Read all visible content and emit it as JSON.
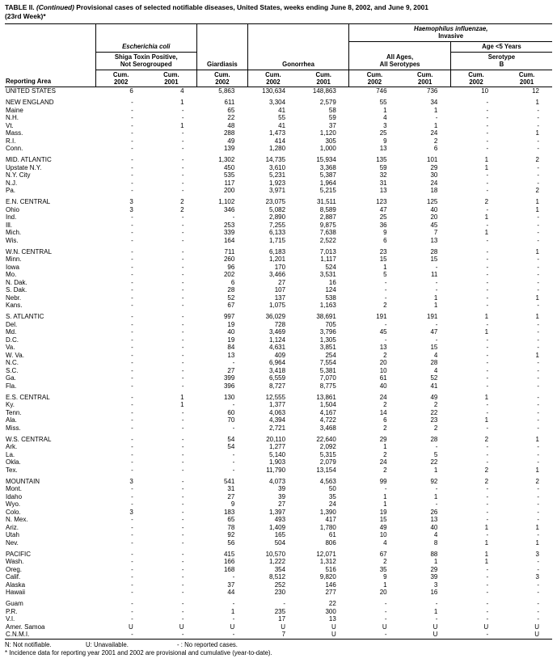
{
  "title": {
    "label": "TABLE II.",
    "continued": "(Continued)",
    "text": "Provisional cases of selected notifiable diseases, United States, weeks ending June 8, 2002, and June 9, 2001",
    "week": "(23rd Week)*"
  },
  "header": {
    "reporting_area": "Reporting Area",
    "ecoli": {
      "title": "Escherichia coli",
      "sub1": "Shiga Toxin Positive,",
      "sub2": "Not Serogrouped"
    },
    "giardiasis": "Giardiasis",
    "gonorrhea": "Gonorrhea",
    "hinf": {
      "title1": "Haemophilus influenzae,",
      "title2": "Invasive",
      "age5": "Age <5 Years",
      "all_ages1": "All Ages,",
      "all_ages2": "All Serotypes",
      "serotype1": "Serotype",
      "serotype2": "B"
    },
    "cum_label": "Cum.",
    "years": [
      "2002",
      "2001",
      "2002",
      "2002",
      "2001",
      "2002",
      "2001",
      "2002",
      "2001"
    ]
  },
  "table": {
    "groups": [
      {
        "rows": [
          {
            "area": "UNITED STATES",
            "values": [
              "6",
              "4",
              "5,863",
              "130,634",
              "148,863",
              "746",
              "736",
              "10",
              "12"
            ]
          }
        ]
      },
      {
        "rows": [
          {
            "area": "NEW ENGLAND",
            "values": [
              "-",
              "1",
              "611",
              "3,304",
              "2,579",
              "55",
              "34",
              "-",
              "1"
            ]
          },
          {
            "area": "Maine",
            "values": [
              "-",
              "-",
              "65",
              "41",
              "58",
              "1",
              "1",
              "-",
              "-"
            ]
          },
          {
            "area": "N.H.",
            "values": [
              "-",
              "-",
              "22",
              "55",
              "59",
              "4",
              "-",
              "-",
              "-"
            ]
          },
          {
            "area": "Vt.",
            "values": [
              "-",
              "1",
              "48",
              "41",
              "37",
              "3",
              "1",
              "-",
              "-"
            ]
          },
          {
            "area": "Mass.",
            "values": [
              "-",
              "-",
              "288",
              "1,473",
              "1,120",
              "25",
              "24",
              "-",
              "1"
            ]
          },
          {
            "area": "R.I.",
            "values": [
              "-",
              "-",
              "49",
              "414",
              "305",
              "9",
              "2",
              "-",
              "-"
            ]
          },
          {
            "area": "Conn.",
            "values": [
              "-",
              "-",
              "139",
              "1,280",
              "1,000",
              "13",
              "6",
              "-",
              "-"
            ]
          }
        ]
      },
      {
        "rows": [
          {
            "area": "MID. ATLANTIC",
            "values": [
              "-",
              "-",
              "1,302",
              "14,735",
              "15,934",
              "135",
              "101",
              "1",
              "2"
            ]
          },
          {
            "area": "Upstate N.Y.",
            "values": [
              "-",
              "-",
              "450",
              "3,610",
              "3,368",
              "59",
              "29",
              "1",
              "-"
            ]
          },
          {
            "area": "N.Y. City",
            "values": [
              "-",
              "-",
              "535",
              "5,231",
              "5,387",
              "32",
              "30",
              "-",
              "-"
            ]
          },
          {
            "area": "N.J.",
            "values": [
              "-",
              "-",
              "117",
              "1,923",
              "1,964",
              "31",
              "24",
              "-",
              "-"
            ]
          },
          {
            "area": "Pa.",
            "values": [
              "-",
              "-",
              "200",
              "3,971",
              "5,215",
              "13",
              "18",
              "-",
              "2"
            ]
          }
        ]
      },
      {
        "rows": [
          {
            "area": "E.N. CENTRAL",
            "values": [
              "3",
              "2",
              "1,102",
              "23,075",
              "31,511",
              "123",
              "125",
              "2",
              "1"
            ]
          },
          {
            "area": "Ohio",
            "values": [
              "3",
              "2",
              "346",
              "5,082",
              "8,589",
              "47",
              "40",
              "-",
              "1"
            ]
          },
          {
            "area": "Ind.",
            "values": [
              "-",
              "-",
              "-",
              "2,890",
              "2,887",
              "25",
              "20",
              "1",
              "-"
            ]
          },
          {
            "area": "Ill.",
            "values": [
              "-",
              "-",
              "253",
              "7,255",
              "9,875",
              "36",
              "45",
              "-",
              "-"
            ]
          },
          {
            "area": "Mich.",
            "values": [
              "-",
              "-",
              "339",
              "6,133",
              "7,638",
              "9",
              "7",
              "1",
              "-"
            ]
          },
          {
            "area": "Wis.",
            "values": [
              "-",
              "-",
              "164",
              "1,715",
              "2,522",
              "6",
              "13",
              "-",
              "-"
            ]
          }
        ]
      },
      {
        "rows": [
          {
            "area": "W.N. CENTRAL",
            "values": [
              "-",
              "-",
              "711",
              "6,183",
              "7,013",
              "23",
              "28",
              "-",
              "1"
            ]
          },
          {
            "area": "Minn.",
            "values": [
              "-",
              "-",
              "260",
              "1,201",
              "1,117",
              "15",
              "15",
              "-",
              "-"
            ]
          },
          {
            "area": "Iowa",
            "values": [
              "-",
              "-",
              "96",
              "170",
              "524",
              "1",
              "-",
              "-",
              "-"
            ]
          },
          {
            "area": "Mo.",
            "values": [
              "-",
              "-",
              "202",
              "3,466",
              "3,531",
              "5",
              "11",
              "-",
              "-"
            ]
          },
          {
            "area": "N. Dak.",
            "values": [
              "-",
              "-",
              "6",
              "27",
              "16",
              "-",
              "-",
              "-",
              "-"
            ]
          },
          {
            "area": "S. Dak.",
            "values": [
              "-",
              "-",
              "28",
              "107",
              "124",
              "-",
              "-",
              "-",
              "-"
            ]
          },
          {
            "area": "Nebr.",
            "values": [
              "-",
              "-",
              "52",
              "137",
              "538",
              "-",
              "1",
              "-",
              "1"
            ]
          },
          {
            "area": "Kans.",
            "values": [
              "-",
              "-",
              "67",
              "1,075",
              "1,163",
              "2",
              "1",
              "-",
              "-"
            ]
          }
        ]
      },
      {
        "rows": [
          {
            "area": "S. ATLANTIC",
            "values": [
              "-",
              "-",
              "997",
              "36,029",
              "38,691",
              "191",
              "191",
              "1",
              "1"
            ]
          },
          {
            "area": "Del.",
            "values": [
              "-",
              "-",
              "19",
              "728",
              "705",
              "-",
              "-",
              "-",
              "-"
            ]
          },
          {
            "area": "Md.",
            "values": [
              "-",
              "-",
              "40",
              "3,469",
              "3,796",
              "45",
              "47",
              "1",
              "-"
            ]
          },
          {
            "area": "D.C.",
            "values": [
              "-",
              "-",
              "19",
              "1,124",
              "1,305",
              "-",
              "-",
              "-",
              "-"
            ]
          },
          {
            "area": "Va.",
            "values": [
              "-",
              "-",
              "84",
              "4,631",
              "3,851",
              "13",
              "15",
              "-",
              "-"
            ]
          },
          {
            "area": "W. Va.",
            "values": [
              "-",
              "-",
              "13",
              "409",
              "254",
              "2",
              "4",
              "-",
              "1"
            ]
          },
          {
            "area": "N.C.",
            "values": [
              "-",
              "-",
              "-",
              "6,964",
              "7,554",
              "20",
              "28",
              "-",
              "-"
            ]
          },
          {
            "area": "S.C.",
            "values": [
              "-",
              "-",
              "27",
              "3,418",
              "5,381",
              "10",
              "4",
              "-",
              "-"
            ]
          },
          {
            "area": "Ga.",
            "values": [
              "-",
              "-",
              "399",
              "6,559",
              "7,070",
              "61",
              "52",
              "-",
              "-"
            ]
          },
          {
            "area": "Fla.",
            "values": [
              "-",
              "-",
              "396",
              "8,727",
              "8,775",
              "40",
              "41",
              "-",
              "-"
            ]
          }
        ]
      },
      {
        "rows": [
          {
            "area": "E.S. CENTRAL",
            "values": [
              "-",
              "1",
              "130",
              "12,555",
              "13,861",
              "24",
              "49",
              "1",
              "-"
            ]
          },
          {
            "area": "Ky.",
            "values": [
              "-",
              "1",
              "-",
              "1,377",
              "1,504",
              "2",
              "2",
              "-",
              "-"
            ]
          },
          {
            "area": "Tenn.",
            "values": [
              "-",
              "-",
              "60",
              "4,063",
              "4,167",
              "14",
              "22",
              "-",
              "-"
            ]
          },
          {
            "area": "Ala.",
            "values": [
              "-",
              "-",
              "70",
              "4,394",
              "4,722",
              "6",
              "23",
              "1",
              "-"
            ]
          },
          {
            "area": "Miss.",
            "values": [
              "-",
              "-",
              "-",
              "2,721",
              "3,468",
              "2",
              "2",
              "-",
              "-"
            ]
          }
        ]
      },
      {
        "rows": [
          {
            "area": "W.S. CENTRAL",
            "values": [
              "-",
              "-",
              "54",
              "20,110",
              "22,640",
              "29",
              "28",
              "2",
              "1"
            ]
          },
          {
            "area": "Ark.",
            "values": [
              "-",
              "-",
              "54",
              "1,277",
              "2,092",
              "1",
              "-",
              "-",
              "-"
            ]
          },
          {
            "area": "La.",
            "values": [
              "-",
              "-",
              "-",
              "5,140",
              "5,315",
              "2",
              "5",
              "-",
              "-"
            ]
          },
          {
            "area": "Okla.",
            "values": [
              "-",
              "-",
              "-",
              "1,903",
              "2,079",
              "24",
              "22",
              "-",
              "-"
            ]
          },
          {
            "area": "Tex.",
            "values": [
              "-",
              "-",
              "-",
              "11,790",
              "13,154",
              "2",
              "1",
              "2",
              "1"
            ]
          }
        ]
      },
      {
        "rows": [
          {
            "area": "MOUNTAIN",
            "values": [
              "3",
              "-",
              "541",
              "4,073",
              "4,563",
              "99",
              "92",
              "2",
              "2"
            ]
          },
          {
            "area": "Mont.",
            "values": [
              "-",
              "-",
              "31",
              "39",
              "50",
              "-",
              "-",
              "-",
              "-"
            ]
          },
          {
            "area": "Idaho",
            "values": [
              "-",
              "-",
              "27",
              "39",
              "35",
              "1",
              "1",
              "-",
              "-"
            ]
          },
          {
            "area": "Wyo.",
            "values": [
              "-",
              "-",
              "9",
              "27",
              "24",
              "1",
              "-",
              "-",
              "-"
            ]
          },
          {
            "area": "Colo.",
            "values": [
              "3",
              "-",
              "183",
              "1,397",
              "1,390",
              "19",
              "26",
              "-",
              "-"
            ]
          },
          {
            "area": "N. Mex.",
            "values": [
              "-",
              "-",
              "65",
              "493",
              "417",
              "15",
              "13",
              "-",
              "-"
            ]
          },
          {
            "area": "Ariz.",
            "values": [
              "-",
              "-",
              "78",
              "1,409",
              "1,780",
              "49",
              "40",
              "1",
              "1"
            ]
          },
          {
            "area": "Utah",
            "values": [
              "-",
              "-",
              "92",
              "165",
              "61",
              "10",
              "4",
              "-",
              "-"
            ]
          },
          {
            "area": "Nev.",
            "values": [
              "-",
              "-",
              "56",
              "504",
              "806",
              "4",
              "8",
              "1",
              "1"
            ]
          }
        ]
      },
      {
        "rows": [
          {
            "area": "PACIFIC",
            "values": [
              "-",
              "-",
              "415",
              "10,570",
              "12,071",
              "67",
              "88",
              "1",
              "3"
            ]
          },
          {
            "area": "Wash.",
            "values": [
              "-",
              "-",
              "166",
              "1,222",
              "1,312",
              "2",
              "1",
              "1",
              "-"
            ]
          },
          {
            "area": "Oreg.",
            "values": [
              "-",
              "-",
              "168",
              "354",
              "516",
              "35",
              "29",
              "-",
              "-"
            ]
          },
          {
            "area": "Calif.",
            "values": [
              "-",
              "-",
              "-",
              "8,512",
              "9,820",
              "9",
              "39",
              "-",
              "3"
            ]
          },
          {
            "area": "Alaska",
            "values": [
              "-",
              "-",
              "37",
              "252",
              "146",
              "1",
              "3",
              "-",
              "-"
            ]
          },
          {
            "area": "Hawaii",
            "values": [
              "-",
              "-",
              "44",
              "230",
              "277",
              "20",
              "16",
              "-",
              "-"
            ]
          }
        ]
      },
      {
        "rows": [
          {
            "area": "Guam",
            "values": [
              "-",
              "-",
              "-",
              "-",
              "22",
              "-",
              "-",
              "-",
              "-"
            ]
          },
          {
            "area": "P.R.",
            "values": [
              "-",
              "-",
              "1",
              "235",
              "300",
              "-",
              "1",
              "-",
              "-"
            ]
          },
          {
            "area": "V.I.",
            "values": [
              "-",
              "-",
              "-",
              "17",
              "13",
              "-",
              "-",
              "-",
              "-"
            ]
          },
          {
            "area": "Amer. Samoa",
            "values": [
              "U",
              "U",
              "U",
              "U",
              "U",
              "U",
              "U",
              "U",
              "U"
            ]
          },
          {
            "area": "C.N.M.I.",
            "values": [
              "-",
              "-",
              "-",
              "7",
              "U",
              "-",
              "U",
              "-",
              "U"
            ]
          }
        ]
      }
    ]
  },
  "footnotes": {
    "not_notifiable": "N: Not notifiable.",
    "unavailable": "U: Unavailable.",
    "no_cases": "- : No reported cases.",
    "incidence": "* Incidence data for reporting year 2001 and 2002 are provisional and cumulative (year-to-date)."
  }
}
